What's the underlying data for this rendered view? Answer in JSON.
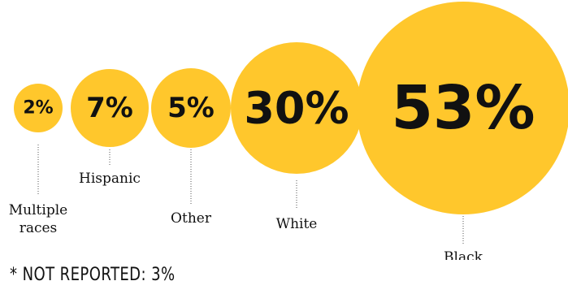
{
  "chart_data": {
    "type": "bubble",
    "title": "",
    "categories": [
      "Multiple races",
      "Hispanic",
      "Other",
      "White",
      "Black"
    ],
    "values": [
      2,
      7,
      5,
      30,
      53
    ],
    "value_labels": [
      "2%",
      "7%",
      "5%",
      "30%",
      "53%"
    ],
    "category_labels": [
      [
        "Multiple",
        "races"
      ],
      [
        "Hispanic"
      ],
      [
        "Other"
      ],
      [
        "White"
      ],
      [
        "Black"
      ]
    ],
    "color": "#FFC72C"
  },
  "footnote": "* NOT REPORTED: 3%"
}
